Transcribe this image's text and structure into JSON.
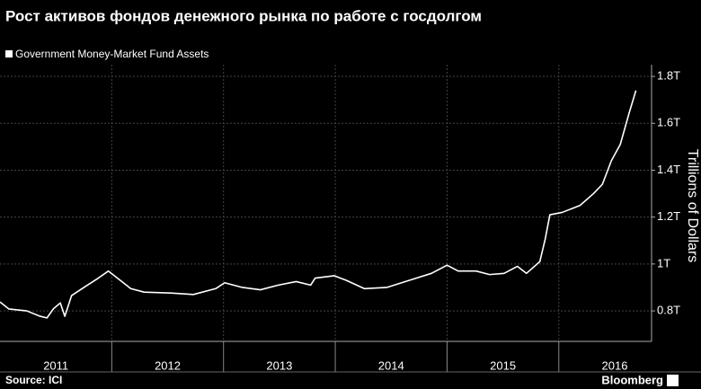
{
  "chart_data": {
    "type": "line",
    "title": "Рост активов фондов денежного рынка по работе с госдолгом",
    "y_label": "Trillions of Dollars",
    "source": "Source: ICI",
    "brand": "Bloomberg",
    "grid": true,
    "xlim": [
      2011,
      2016.83
    ],
    "ylim": [
      0.67,
      1.85
    ],
    "xticks": [
      {
        "value": 2011.5,
        "label": "2011"
      },
      {
        "value": 2012.5,
        "label": "2012"
      },
      {
        "value": 2013.5,
        "label": "2013"
      },
      {
        "value": 2014.5,
        "label": "2014"
      },
      {
        "value": 2015.5,
        "label": "2015"
      },
      {
        "value": 2016.5,
        "label": "2016"
      }
    ],
    "xgrid": [
      2012,
      2013,
      2014,
      2015,
      2016
    ],
    "yticks": [
      {
        "value": 0.8,
        "label": "0.8T"
      },
      {
        "value": 1,
        "label": "1T"
      },
      {
        "value": 1.2,
        "label": "1.2T"
      },
      {
        "value": 1.4,
        "label": "1.4T"
      },
      {
        "value": 1.6,
        "label": "1.6T"
      },
      {
        "value": 1.8,
        "label": "1.8T"
      }
    ],
    "x": [
      2011,
      2011.08,
      2011.24,
      2011.36,
      2011.42,
      2011.48,
      2011.54,
      2011.58,
      2011.64,
      2011.76,
      2011.88,
      2011.97,
      2012.05,
      2012.17,
      2012.29,
      2012.53,
      2012.73,
      2012.93,
      2013.01,
      2013.17,
      2013.33,
      2013.49,
      2013.65,
      2013.78,
      2013.82,
      2013.99,
      2014.1,
      2014.26,
      2014.46,
      2014.66,
      2014.86,
      2015.0,
      2015.1,
      2015.26,
      2015.38,
      2015.51,
      2015.63,
      2015.71,
      2015.83,
      2015.88,
      2015.92,
      2016.03,
      2016.19,
      2016.31,
      2016.39,
      2016.47,
      2016.55,
      2016.63,
      2016.69
    ],
    "series": [
      {
        "name": "Government Money-Market Fund Assets",
        "color": "#ffffff",
        "values": [
          0.838,
          0.808,
          0.8,
          0.777,
          0.77,
          0.81,
          0.834,
          0.777,
          0.865,
          0.903,
          0.94,
          0.97,
          0.94,
          0.895,
          0.88,
          0.876,
          0.87,
          0.895,
          0.92,
          0.9,
          0.89,
          0.91,
          0.925,
          0.91,
          0.94,
          0.95,
          0.93,
          0.895,
          0.9,
          0.93,
          0.96,
          0.995,
          0.97,
          0.97,
          0.955,
          0.96,
          0.99,
          0.96,
          1.01,
          1.11,
          1.21,
          1.22,
          1.25,
          1.3,
          1.34,
          1.44,
          1.51,
          1.645,
          1.74
        ]
      }
    ]
  }
}
